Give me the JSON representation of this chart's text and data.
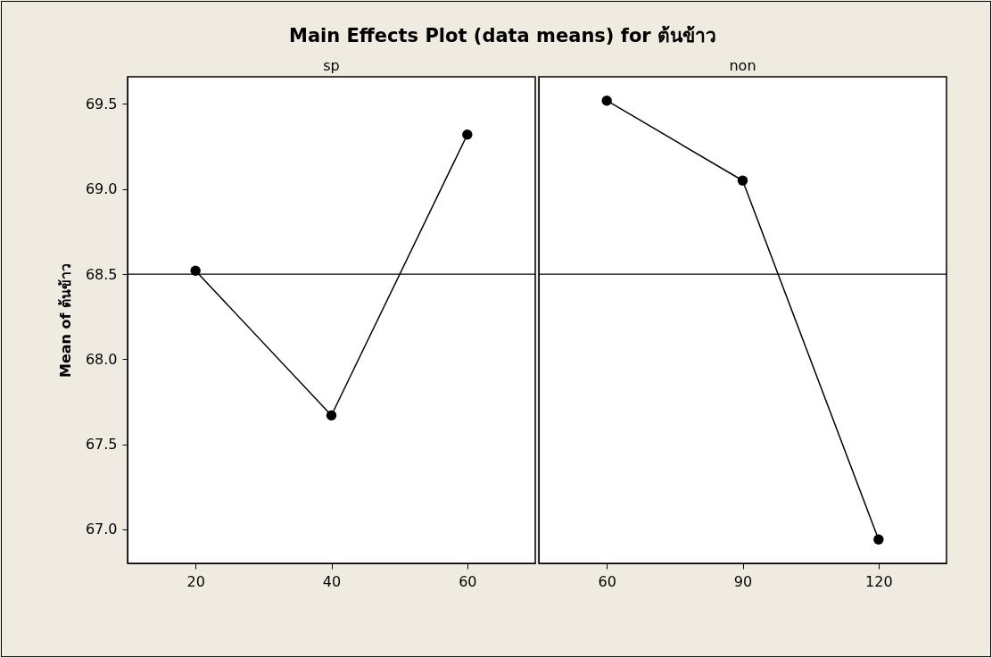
{
  "chart_data": [
    {
      "type": "line",
      "title": "Main Effects Plot (data means) for ต้นข้าว",
      "xlabel": "sp",
      "ylabel": "Mean of ต้นข้าว",
      "x": [
        20,
        40,
        60
      ],
      "series": [
        {
          "color": "#000000",
          "values": [
            68.52,
            67.67,
            69.32
          ]
        }
      ],
      "xlim": [
        10,
        70
      ],
      "xticks": [
        20,
        40,
        60
      ],
      "ylim": [
        66.8,
        69.66
      ],
      "yticks": [
        {
          "value": 67,
          "label": "67.0"
        },
        67.5,
        {
          "value": 68,
          "label": "68.0"
        },
        68.5,
        {
          "value": 69,
          "label": "69.0"
        },
        69.5
      ],
      "ref_lines": [
        {
          "axis": "y",
          "value": 68.5,
          "color": "#000000"
        }
      ],
      "marker": "circle",
      "line_style": "solid"
    },
    {
      "type": "line",
      "xlabel": "non",
      "x": [
        60,
        90,
        120
      ],
      "series": [
        {
          "color": "#000000",
          "values": [
            69.52,
            69.05,
            66.94
          ]
        }
      ],
      "xlim": [
        45,
        135
      ],
      "xticks": [
        60,
        90,
        120
      ],
      "ylim": [
        66.8,
        69.66
      ],
      "ref_lines": [
        {
          "axis": "y",
          "value": 68.5,
          "color": "#000000"
        }
      ],
      "marker": "circle",
      "line_style": "solid",
      "tick_labels": "x"
    }
  ]
}
